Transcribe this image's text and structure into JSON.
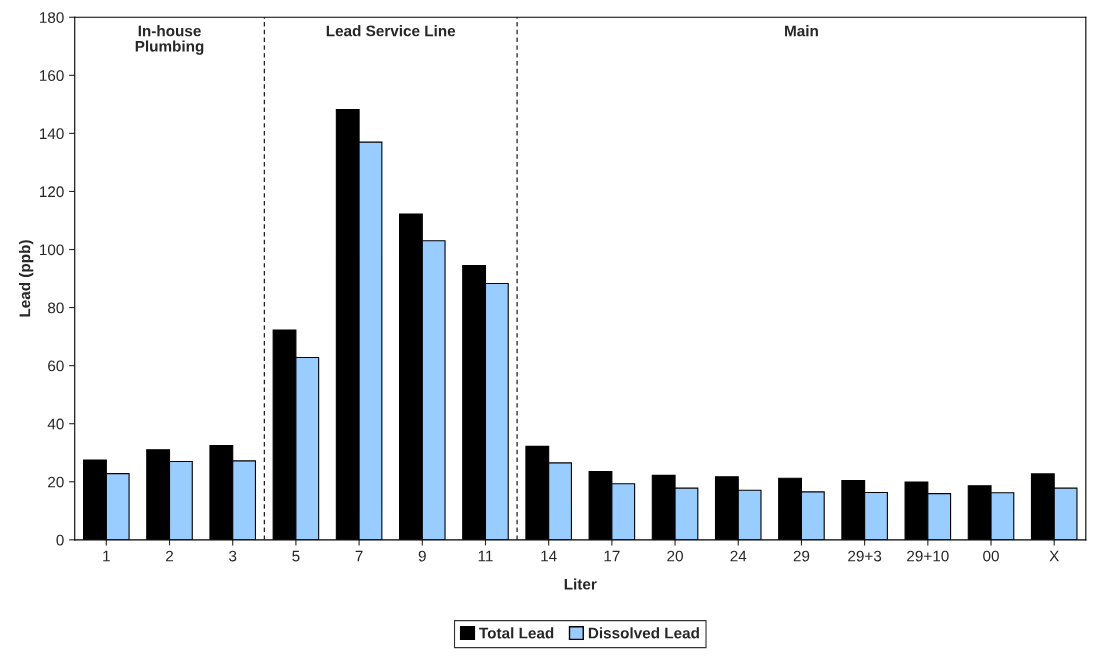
{
  "chart_data": {
    "type": "bar",
    "xlabel": "Liter",
    "ylabel": "Lead (ppb)",
    "categories": [
      "1",
      "2",
      "3",
      "5",
      "7",
      "9",
      "11",
      "14",
      "17",
      "20",
      "24",
      "29",
      "29+3",
      "29+10",
      "00",
      "X"
    ],
    "series": [
      {
        "name": "Total Lead",
        "color": "#000000",
        "values": [
          27.5,
          31,
          32.5,
          72.3,
          148.2,
          112.2,
          94.5,
          32.2,
          23.5,
          22.2,
          21.7,
          21.2,
          20.4,
          19.9,
          18.6,
          22.7
        ]
      },
      {
        "name": "Dissolved Lead",
        "color": "#99ccff",
        "values": [
          22.8,
          27,
          27.2,
          62.8,
          137,
          103,
          88.3,
          26.5,
          19.3,
          17.8,
          17.1,
          16.5,
          16.3,
          15.9,
          16.2,
          17.8
        ]
      }
    ],
    "ylim": [
      0,
      180
    ],
    "yticks": [
      0,
      20,
      40,
      60,
      80,
      100,
      120,
      140,
      160,
      180
    ],
    "annotations": [
      "In-house\nPlumbing",
      "Lead Service Line",
      "Main"
    ],
    "grid": false,
    "legend": "bottom"
  }
}
